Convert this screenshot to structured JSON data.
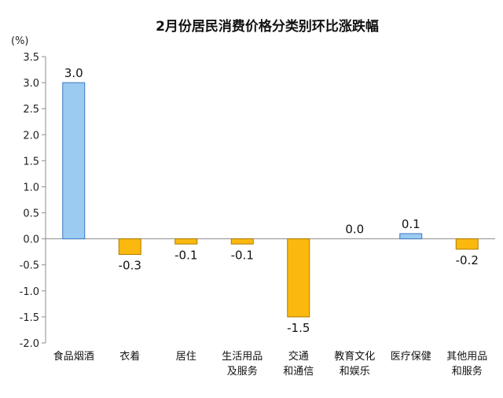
{
  "chart_data": {
    "type": "bar",
    "title": "2月份居民消费价格分类别环比涨跌幅",
    "unit": "(%)",
    "ylim": [
      -2.0,
      3.5
    ],
    "yticks": [
      "3.5",
      "3.0",
      "2.5",
      "2.0",
      "1.5",
      "1.0",
      "0.5",
      "0.0",
      "-0.5",
      "-1.0",
      "-1.5",
      "-2.0"
    ],
    "ytick_values": [
      3.5,
      3.0,
      2.5,
      2.0,
      1.5,
      1.0,
      0.5,
      0.0,
      -0.5,
      -1.0,
      -1.5,
      -2.0
    ],
    "categories": [
      [
        "食品烟酒"
      ],
      [
        "衣着"
      ],
      [
        "居住"
      ],
      [
        "生活用品",
        "及服务"
      ],
      [
        "交通",
        "和通信"
      ],
      [
        "教育文化",
        "和娱乐"
      ],
      [
        "医疗保健"
      ],
      [
        "其他用品",
        "和服务"
      ]
    ],
    "values": [
      3.0,
      -0.3,
      -0.1,
      -0.1,
      -1.5,
      0.0,
      0.1,
      -0.2
    ],
    "value_labels": [
      "3.0",
      "-0.3",
      "-0.1",
      "-0.1",
      "-1.5",
      "0.0",
      "0.1",
      "-0.2"
    ],
    "grid": false,
    "legend": "none",
    "colors": {
      "positive_fill": "#9ccbf2",
      "positive_stroke": "#3b78c2",
      "negative_fill": "#fbb80f",
      "negative_stroke": "#b07d00",
      "axis": "#8c8c8c"
    }
  }
}
